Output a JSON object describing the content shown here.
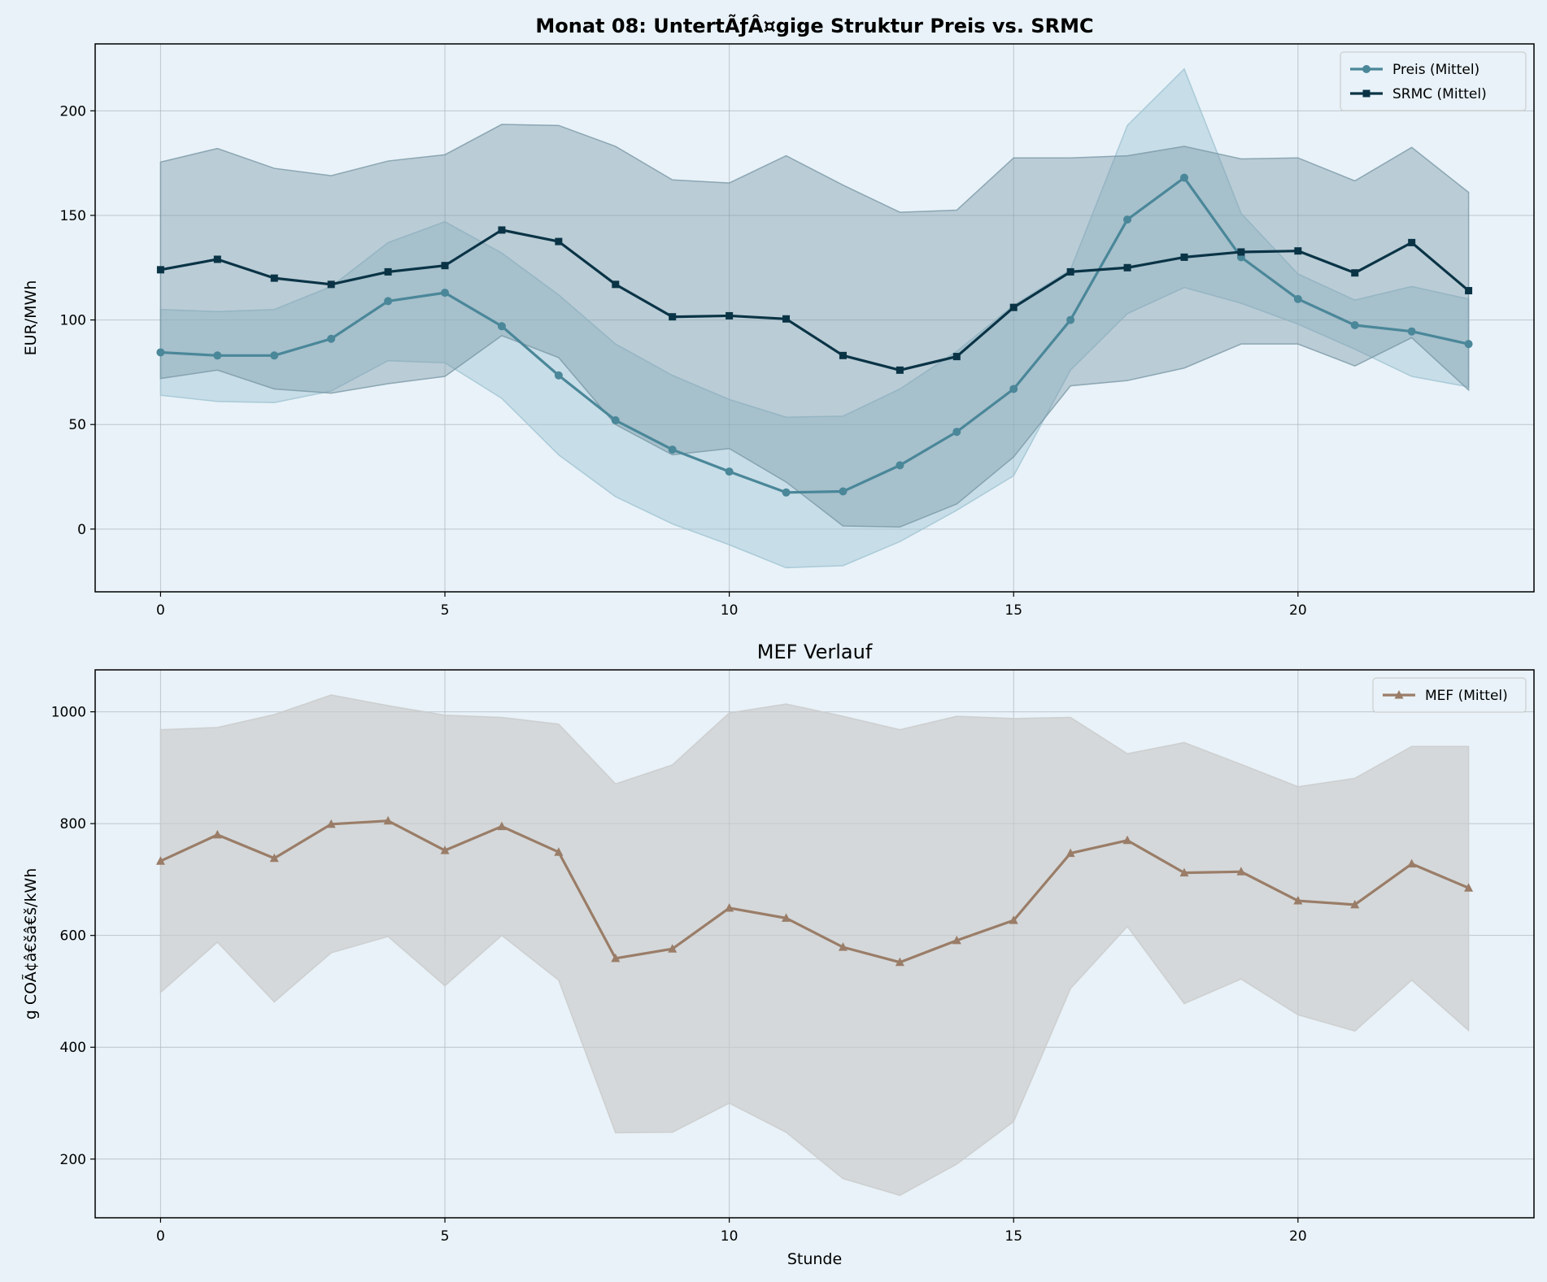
{
  "colors": {
    "background": "#e8f2f8",
    "preis": "#4a8799",
    "srmc": "#0a3446",
    "mef": "#9a7d68",
    "preis_band": "#9fc3d2",
    "srmc_band": "#7a98a6",
    "mef_band": "#c9c9c9",
    "grid": "#a9b3b9"
  },
  "chart_data": [
    {
      "type": "line",
      "title": "Monat 08: UntertÃƒÂ¤gige Struktur Preis vs. SRMC",
      "xlabel": "",
      "ylabel": "EUR/MWh",
      "xlim": [
        -1.15,
        24.15
      ],
      "ylim": [
        -30,
        232
      ],
      "xticks": [
        0,
        5,
        10,
        15,
        20
      ],
      "yticks": [
        0,
        50,
        100,
        150,
        200
      ],
      "grid": true,
      "legend": "top-right",
      "x": [
        0,
        1,
        2,
        3,
        4,
        5,
        6,
        7,
        8,
        9,
        10,
        11,
        12,
        13,
        14,
        15,
        16,
        17,
        18,
        19,
        20,
        21,
        22,
        23
      ],
      "series": [
        {
          "name": "Preis (Mittel)",
          "marker": "circle",
          "values": [
            84.5,
            83,
            83,
            91,
            109,
            113,
            97,
            73.5,
            52,
            38,
            27.5,
            17.5,
            18,
            30.5,
            46.5,
            67,
            100,
            148,
            168,
            130,
            110,
            97.5,
            94.5,
            88.5
          ],
          "band_lower": [
            64,
            61,
            60.5,
            66,
            80.5,
            79.5,
            62.5,
            35.5,
            15.5,
            2.5,
            -7.5,
            -18.5,
            -17.5,
            -6,
            9,
            25.5,
            76,
            103,
            115.5,
            108,
            98,
            86,
            73,
            68
          ],
          "band_upper": [
            105,
            104,
            105,
            116,
            137,
            147,
            132,
            112,
            88.5,
            73.5,
            62,
            53.5,
            54,
            67,
            85,
            107,
            124,
            193,
            220,
            151,
            122,
            109.5,
            116,
            110
          ]
        },
        {
          "name": "SRMC (Mittel)",
          "marker": "square",
          "values": [
            124,
            129,
            120,
            117,
            123,
            126,
            143,
            137.5,
            117,
            101.5,
            102,
            100.5,
            83,
            76,
            82.5,
            106,
            123,
            125,
            130,
            132.5,
            133,
            122.5,
            137,
            114
          ],
          "band_lower": [
            72,
            76,
            67,
            65,
            69.5,
            73,
            92.5,
            82,
            50,
            35.5,
            38.5,
            22.5,
            1.5,
            1,
            12,
            34.5,
            68.5,
            71,
            77,
            88.5,
            88.5,
            78,
            91.5,
            66.5
          ],
          "band_upper": [
            175.5,
            182,
            172.5,
            169,
            176,
            179,
            193.5,
            193,
            183,
            167,
            165.5,
            178.5,
            164.5,
            151.5,
            152.5,
            177.5,
            177.5,
            178.5,
            183,
            177,
            177.5,
            166.5,
            182.5,
            161
          ]
        }
      ]
    },
    {
      "type": "line",
      "title": "MEF Verlauf",
      "xlabel": "Stunde",
      "ylabel": "g COÃ¢â€šâ€š/kWh",
      "xlim": [
        -1.15,
        24.15
      ],
      "ylim": [
        95,
        1075
      ],
      "xticks": [
        0,
        5,
        10,
        15,
        20
      ],
      "yticks": [
        200,
        400,
        600,
        800,
        1000
      ],
      "grid": true,
      "legend": "top-right",
      "x": [
        0,
        1,
        2,
        3,
        4,
        5,
        6,
        7,
        8,
        9,
        10,
        11,
        12,
        13,
        14,
        15,
        16,
        17,
        18,
        19,
        20,
        21,
        22,
        23
      ],
      "series": [
        {
          "name": "MEF (Mittel)",
          "marker": "triangle",
          "values": [
            733,
            780,
            738,
            799,
            805,
            752,
            795,
            749,
            559,
            576,
            649,
            631,
            579,
            552,
            591,
            627,
            747,
            770,
            712,
            714,
            662,
            655,
            728,
            685
          ],
          "band_lower": [
            498,
            588,
            481,
            569,
            598,
            510,
            600,
            520,
            247,
            248,
            300,
            248,
            165,
            135,
            191,
            267,
            505,
            616,
            478,
            522,
            458,
            429,
            520,
            430
          ],
          "band_upper": [
            968,
            972,
            995,
            1030,
            1011,
            994,
            990,
            978,
            871,
            905,
            998,
            1014,
            992,
            968,
            992,
            988,
            990,
            925,
            945,
            906,
            866,
            881,
            938,
            938
          ]
        }
      ]
    }
  ]
}
